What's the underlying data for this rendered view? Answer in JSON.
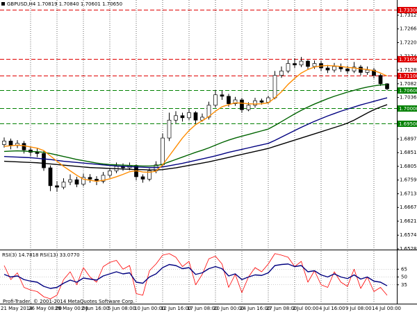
{
  "chart_data": [
    {
      "type": "candlestick",
      "title": "GBPUSD,H4 1.70819 1.70840 1.70601 1.70650",
      "categories": [
        "21 May 2014",
        null,
        null,
        null,
        "26 May 08:00",
        null,
        null,
        null,
        "29 May 00:00",
        null,
        null,
        null,
        "2 Jun 16:00",
        null,
        null,
        null,
        "5 Jun 08:00",
        null,
        null,
        null,
        "10 Jun 00:00",
        null,
        null,
        null,
        "12 Jun 16:00",
        null,
        null,
        null,
        "17 Jun 08:00",
        null,
        null,
        null,
        "20 Jun 00:00",
        null,
        null,
        null,
        "24 Jun 16:00",
        null,
        null,
        null,
        "27 Jun 08:00",
        null,
        null,
        null,
        "2 Jul 00:00",
        null,
        null,
        null,
        "4 Jul 16:00",
        null,
        null,
        null,
        "9 Jul 08:00",
        null,
        null,
        null,
        "14 Jul 00:00",
        null,
        null
      ],
      "open": [
        1.6878,
        1.689,
        1.6875,
        1.6882,
        1.686,
        1.6852,
        1.6848,
        1.68,
        1.674,
        1.6735,
        1.6752,
        1.676,
        1.6745,
        1.6768,
        1.6762,
        1.6755,
        1.6775,
        1.679,
        1.6805,
        1.68,
        1.6808,
        1.677,
        1.6762,
        1.679,
        1.681,
        1.69,
        1.696,
        1.6975,
        1.6968,
        1.6985,
        1.696,
        1.697,
        1.701,
        1.7045,
        1.704,
        1.7015,
        1.7028,
        1.6995,
        1.701,
        1.7025,
        1.702,
        1.7035,
        1.711,
        1.7125,
        1.715,
        1.7145,
        1.7158,
        1.714,
        1.715,
        1.7135,
        1.7128,
        1.714,
        1.7132,
        1.7125,
        1.7138,
        1.712,
        1.7128,
        1.711,
        1.70819
      ],
      "high": [
        1.6902,
        1.6898,
        1.6893,
        1.689,
        1.687,
        1.6865,
        1.6858,
        1.6808,
        1.6755,
        1.6765,
        1.6778,
        1.677,
        1.678,
        1.6779,
        1.6772,
        1.6786,
        1.68,
        1.6818,
        1.6815,
        1.6818,
        1.6812,
        1.6778,
        1.6798,
        1.6822,
        1.6915,
        1.6985,
        1.699,
        1.6985,
        1.6998,
        1.699,
        1.6982,
        1.7022,
        1.706,
        1.7058,
        1.7048,
        1.7038,
        1.7035,
        1.702,
        1.7035,
        1.7032,
        1.7042,
        1.7125,
        1.714,
        1.7162,
        1.7168,
        1.7172,
        1.7162,
        1.716,
        1.7158,
        1.7145,
        1.7152,
        1.715,
        1.7142,
        1.7155,
        1.7145,
        1.714,
        1.7135,
        1.7115,
        1.7084
      ],
      "low": [
        1.6868,
        1.6862,
        1.6866,
        1.6848,
        1.684,
        1.6836,
        1.679,
        1.6722,
        1.672,
        1.6728,
        1.6742,
        1.6735,
        1.6738,
        1.675,
        1.6742,
        1.6748,
        1.6766,
        1.6782,
        1.679,
        1.6792,
        1.6758,
        1.675,
        1.6755,
        1.6782,
        1.6805,
        1.689,
        1.695,
        1.6955,
        1.696,
        1.6948,
        1.6955,
        1.6962,
        1.7002,
        1.7028,
        1.7005,
        1.7008,
        1.6985,
        1.699,
        1.7002,
        1.7012,
        1.7015,
        1.703,
        1.7102,
        1.7118,
        1.7135,
        1.7138,
        1.713,
        1.7132,
        1.7125,
        1.7118,
        1.712,
        1.7122,
        1.7115,
        1.7118,
        1.711,
        1.7112,
        1.71,
        1.7075,
        1.70601
      ],
      "close": [
        1.689,
        1.6875,
        1.6882,
        1.686,
        1.6852,
        1.6848,
        1.68,
        1.674,
        1.6735,
        1.6752,
        1.676,
        1.6745,
        1.6768,
        1.6762,
        1.6755,
        1.6775,
        1.679,
        1.6805,
        1.68,
        1.6808,
        1.677,
        1.6762,
        1.679,
        1.681,
        1.69,
        1.696,
        1.6975,
        1.6968,
        1.6985,
        1.696,
        1.697,
        1.701,
        1.7045,
        1.704,
        1.7015,
        1.7028,
        1.6995,
        1.701,
        1.7025,
        1.702,
        1.7035,
        1.711,
        1.7125,
        1.715,
        1.7145,
        1.7158,
        1.714,
        1.715,
        1.7135,
        1.7128,
        1.714,
        1.7132,
        1.7125,
        1.7138,
        1.712,
        1.7128,
        1.711,
        1.70819,
        1.7065
      ],
      "up_color": "#ffffff",
      "down_color": "#000000",
      "series": [
        {
          "color": "#000000",
          "values": [
            1.6822,
            1.6821,
            1.682,
            1.6819,
            1.6818,
            1.6817,
            1.6815,
            1.6813,
            1.6811,
            1.6809,
            1.6807,
            1.6805,
            1.6803,
            1.6801,
            1.68,
            1.6799,
            1.6798,
            1.6797,
            1.6796,
            1.6795,
            1.6794,
            1.6794,
            1.6793,
            1.6793,
            1.6794,
            1.6797,
            1.68,
            1.6804,
            1.6808,
            1.6812,
            1.6816,
            1.682,
            1.6825,
            1.683,
            1.6835,
            1.684,
            1.6845,
            1.685,
            1.6855,
            1.686,
            1.6865,
            1.6872,
            1.6879,
            1.6886,
            1.6893,
            1.69,
            1.6907,
            1.6914,
            1.6921,
            1.6928,
            1.6935,
            1.6942,
            1.695,
            1.696,
            1.6972,
            1.6984,
            1.6995,
            1.7004,
            1.7012
          ]
        },
        {
          "color": "#000080",
          "values": [
            1.6838,
            1.6837,
            1.6836,
            1.6835,
            1.6834,
            1.6832,
            1.683,
            1.6828,
            1.6825,
            1.6822,
            1.682,
            1.6818,
            1.6816,
            1.6814,
            1.6812,
            1.681,
            1.6808,
            1.6806,
            1.6805,
            1.6804,
            1.6803,
            1.6802,
            1.6801,
            1.6801,
            1.6803,
            1.6807,
            1.6811,
            1.6815,
            1.682,
            1.6825,
            1.683,
            1.6835,
            1.684,
            1.6846,
            1.6852,
            1.6857,
            1.6862,
            1.6867,
            1.6872,
            1.6877,
            1.6882,
            1.6892,
            1.6903,
            1.6914,
            1.6925,
            1.6936,
            1.6946,
            1.6956,
            1.6965,
            1.6974,
            1.6982,
            1.699,
            1.6997,
            1.7004,
            1.7011,
            1.7017,
            1.7023,
            1.7029,
            1.7035
          ]
        },
        {
          "color": "#006400",
          "values": [
            1.6855,
            1.6856,
            1.6857,
            1.6856,
            1.6855,
            1.6854,
            1.6852,
            1.6848,
            1.6843,
            1.6838,
            1.6833,
            1.6828,
            1.6824,
            1.682,
            1.6816,
            1.6813,
            1.6811,
            1.681,
            1.6809,
            1.6808,
            1.6807,
            1.6806,
            1.6806,
            1.6807,
            1.6812,
            1.682,
            1.6828,
            1.6836,
            1.6844,
            1.6852,
            1.6859,
            1.6867,
            1.6876,
            1.6885,
            1.6893,
            1.69,
            1.6906,
            1.6912,
            1.6918,
            1.6924,
            1.693,
            1.6942,
            1.6955,
            1.6968,
            1.6981,
            1.6993,
            1.7004,
            1.7014,
            1.7023,
            1.7032,
            1.704,
            1.7047,
            1.7054,
            1.706,
            1.7066,
            1.7071,
            1.7075,
            1.7078,
            1.7079
          ]
        },
        {
          "color": "#ff8c00",
          "values": [
            1.6872,
            1.6874,
            1.6876,
            1.6874,
            1.687,
            1.6866,
            1.6858,
            1.684,
            1.6822,
            1.6805,
            1.679,
            1.6775,
            1.6762,
            1.6758,
            1.6755,
            1.6758,
            1.6763,
            1.677,
            1.6778,
            1.6787,
            1.679,
            1.6786,
            1.6785,
            1.6789,
            1.681,
            1.684,
            1.687,
            1.69,
            1.6925,
            1.6945,
            1.6958,
            1.6972,
            1.699,
            1.7005,
            1.7012,
            1.7018,
            1.7017,
            1.7015,
            1.7014,
            1.7015,
            1.7018,
            1.7035,
            1.7055,
            1.708,
            1.71,
            1.7118,
            1.713,
            1.7138,
            1.7142,
            1.7143,
            1.7142,
            1.714,
            1.7137,
            1.7135,
            1.7132,
            1.713,
            1.7126,
            1.7118,
            1.7108
          ]
        }
      ],
      "levels": [
        {
          "value": 1.733,
          "label": "1.73300",
          "color": "#e00000"
        },
        {
          "value": 1.7165,
          "label": "1.71650",
          "color": "#e00000"
        },
        {
          "value": 1.711,
          "label": "1.71100",
          "color": "#e00000"
        },
        {
          "value": 1.706,
          "label": "1.70600",
          "color": "#008000"
        },
        {
          "value": 1.7,
          "label": "1.70000",
          "color": "#008000"
        },
        {
          "value": 1.695,
          "label": "1.69500",
          "color": "#008000"
        }
      ],
      "ylim": [
        1.6528,
        1.7363
      ],
      "yticks": [
        {
          "value": 1.7312,
          "label": "1.73120"
        },
        {
          "value": 1.7266,
          "label": "1.72660"
        },
        {
          "value": 1.722,
          "label": "1.72200"
        },
        {
          "value": 1.7174,
          "label": "1.71740"
        },
        {
          "value": 1.7128,
          "label": "1.71280"
        },
        {
          "value": 1.7082,
          "label": "1.70820"
        },
        {
          "value": 1.7036,
          "label": "1.70360"
        },
        {
          "value": 1.6897,
          "label": "1.68970"
        },
        {
          "value": 1.6851,
          "label": "1.68510"
        },
        {
          "value": 1.6805,
          "label": "1.68050"
        },
        {
          "value": 1.6759,
          "label": "1.67590"
        },
        {
          "value": 1.6713,
          "label": "1.67130"
        },
        {
          "value": 1.6667,
          "label": "1.66670"
        },
        {
          "value": 1.6621,
          "label": "1.66210"
        },
        {
          "value": 1.6574,
          "label": "1.65740"
        },
        {
          "value": 1.6528,
          "label": "1.65280"
        }
      ],
      "grid": "x"
    },
    {
      "type": "line",
      "title": "RSI(3) 14.7818 RSI(13) 33.0770",
      "ylim": [
        0,
        100
      ],
      "yticks": [
        65,
        50,
        35
      ],
      "series": [
        {
          "color": "#ff0000",
          "values": [
            72,
            45,
            58,
            30,
            25,
            22,
            12,
            8,
            15,
            45,
            60,
            35,
            68,
            50,
            40,
            70,
            78,
            82,
            65,
            72,
            18,
            15,
            62,
            75,
            92,
            95,
            88,
            70,
            80,
            35,
            55,
            85,
            90,
            75,
            30,
            55,
            20,
            50,
            68,
            60,
            75,
            95,
            92,
            88,
            70,
            80,
            40,
            62,
            35,
            30,
            60,
            40,
            32,
            65,
            28,
            50,
            22,
            30,
            14.7818
          ]
        },
        {
          "color": "#000080",
          "values": [
            55,
            50,
            52,
            45,
            42,
            40,
            32,
            28,
            30,
            38,
            44,
            40,
            48,
            46,
            44,
            52,
            56,
            60,
            56,
            58,
            40,
            38,
            50,
            56,
            68,
            74,
            72,
            66,
            68,
            55,
            58,
            66,
            70,
            66,
            52,
            56,
            45,
            50,
            54,
            53,
            58,
            72,
            74,
            75,
            70,
            72,
            60,
            62,
            54,
            50,
            56,
            50,
            47,
            54,
            46,
            50,
            42,
            40,
            33.077
          ]
        }
      ],
      "grid": true
    }
  ],
  "footer": {
    "copyright": "Profi-Trader, © 2001-2014 MetaQuotes Software Corp."
  }
}
